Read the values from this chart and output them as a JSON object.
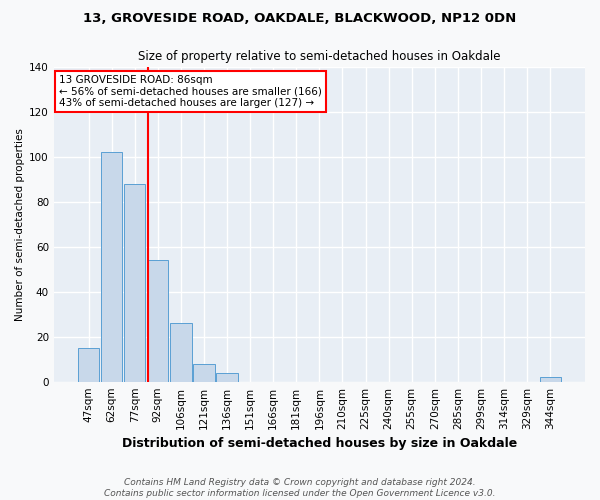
{
  "title": "13, GROVESIDE ROAD, OAKDALE, BLACKWOOD, NP12 0DN",
  "subtitle": "Size of property relative to semi-detached houses in Oakdale",
  "xlabel": "Distribution of semi-detached houses by size in Oakdale",
  "ylabel": "Number of semi-detached properties",
  "bar_labels": [
    "47sqm",
    "62sqm",
    "77sqm",
    "92sqm",
    "106sqm",
    "121sqm",
    "136sqm",
    "151sqm",
    "166sqm",
    "181sqm",
    "196sqm",
    "210sqm",
    "225sqm",
    "240sqm",
    "255sqm",
    "270sqm",
    "285sqm",
    "299sqm",
    "314sqm",
    "329sqm",
    "344sqm"
  ],
  "bar_values": [
    15,
    102,
    88,
    54,
    26,
    8,
    4,
    0,
    0,
    0,
    0,
    0,
    0,
    0,
    0,
    0,
    0,
    0,
    0,
    0,
    2
  ],
  "bar_color": "#c8d8ea",
  "bar_edgecolor": "#5a9fd4",
  "fig_bg_color": "#f8f9fa",
  "ax_bg_color": "#e8eef5",
  "grid_color": "#ffffff",
  "annotation_line1": "13 GROVESIDE ROAD: 86sqm",
  "annotation_line2": "← 56% of semi-detached houses are smaller (166)",
  "annotation_line3": "43% of semi-detached houses are larger (127) →",
  "footer1": "Contains HM Land Registry data © Crown copyright and database right 2024.",
  "footer2": "Contains public sector information licensed under the Open Government Licence v3.0.",
  "ylim": [
    0,
    140
  ],
  "yticks": [
    0,
    20,
    40,
    60,
    80,
    100,
    120,
    140
  ],
  "vline_x": 2.59,
  "title_fontsize": 9.5,
  "subtitle_fontsize": 8.5,
  "xlabel_fontsize": 9,
  "ylabel_fontsize": 7.5,
  "tick_fontsize": 7.5,
  "ann_fontsize": 7.5,
  "footer_fontsize": 6.5
}
